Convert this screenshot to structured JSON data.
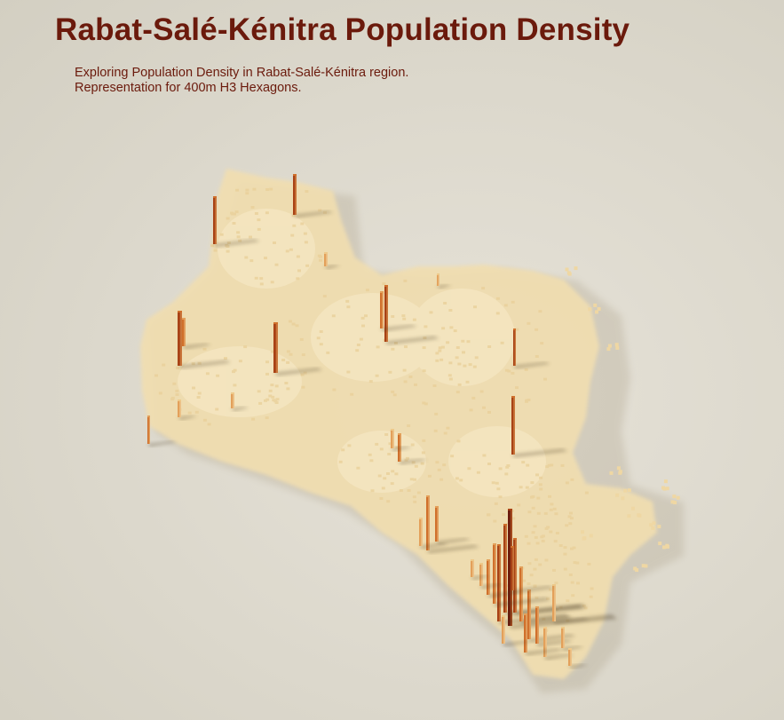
{
  "map": {
    "title": "Rabat-Salé-Kénitra Population Density",
    "subtitle_line_1": "Exploring Population Density in Rabat-Salé-Kénitra region.",
    "subtitle_line_2": "Representation for 400m H3 Hexagons.",
    "region": "Rabat-Salé-Kénitra",
    "visualization": "3D extruded hexagon density map",
    "color_scale": [
      "#f4dfae",
      "#eec98a",
      "#e3a05a",
      "#d0702c",
      "#a84216",
      "#6b1a0c"
    ],
    "background_color": "#dfdbd0",
    "text_color": "#6b1a0c"
  }
}
